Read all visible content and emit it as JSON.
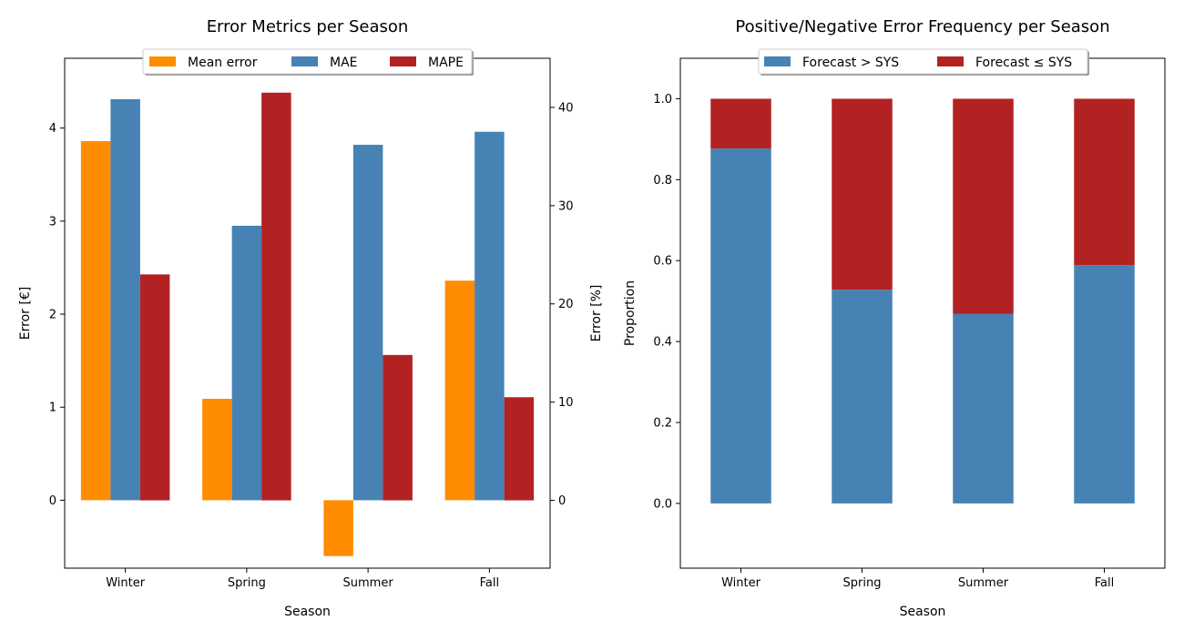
{
  "chart_data": [
    {
      "type": "bar",
      "title": "Error Metrics per Season",
      "xlabel": "Season",
      "ylabel": "Error [€]",
      "ylabel_right": "Error [%]",
      "categories": [
        "Winter",
        "Spring",
        "Summer",
        "Fall"
      ],
      "ylim": [
        -0.73,
        4.75
      ],
      "ylim_right": [
        -6.9,
        45
      ],
      "yticks": [
        0,
        1,
        2,
        3,
        4
      ],
      "yticks_right": [
        0,
        10,
        20,
        30,
        40
      ],
      "legend_position": "top-center",
      "grid": false,
      "series": [
        {
          "name": "Mean error",
          "axis": "left",
          "color": "#ff8c00",
          "values": [
            3.86,
            1.09,
            -0.6,
            2.36
          ]
        },
        {
          "name": "MAE",
          "axis": "left",
          "color": "#4682b4",
          "values": [
            4.31,
            2.95,
            3.82,
            3.96
          ]
        },
        {
          "name": "MAPE",
          "axis": "right",
          "color": "#b22222",
          "values": [
            23.0,
            41.5,
            14.8,
            10.5
          ]
        }
      ]
    },
    {
      "type": "bar",
      "stacked": true,
      "title": "Positive/Negative Error Frequency per Season",
      "xlabel": "Season",
      "ylabel": "Proportion",
      "categories": [
        "Winter",
        "Spring",
        "Summer",
        "Fall"
      ],
      "ylim": [
        -0.16,
        1.1
      ],
      "yticks": [
        "0.0",
        "0.2",
        "0.4",
        "0.6",
        "0.8",
        "1.0"
      ],
      "legend_position": "top-center",
      "grid": false,
      "series": [
        {
          "name": "Forecast > SYS",
          "color": "#4682b4",
          "values": [
            0.877,
            0.528,
            0.468,
            0.589
          ]
        },
        {
          "name": "Forecast ≤ SYS",
          "color": "#b22222",
          "values": [
            0.123,
            0.472,
            0.532,
            0.411
          ]
        }
      ]
    }
  ]
}
